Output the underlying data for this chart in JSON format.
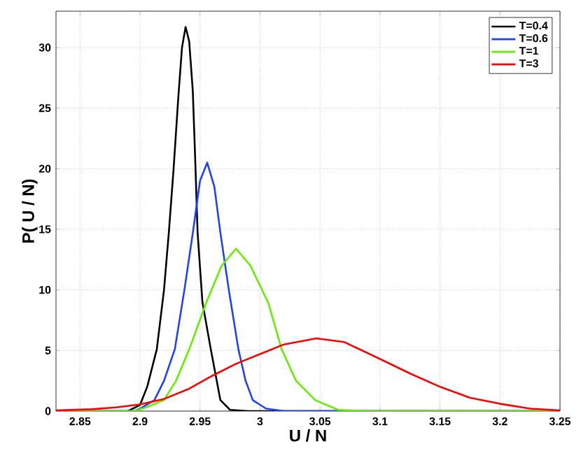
{
  "chart_data": {
    "type": "line",
    "xlabel": "U / N",
    "ylabel": "P( U / N)",
    "xlim": [
      2.83,
      3.25
    ],
    "ylim": [
      0,
      33
    ],
    "xticks": [
      2.85,
      2.9,
      2.95,
      3,
      3.05,
      3.1,
      3.15,
      3.2,
      3.25
    ],
    "yticks": [
      0,
      5,
      10,
      15,
      20,
      25,
      30
    ],
    "grid": true,
    "legend": "top right",
    "series": [
      {
        "name": "T=0.4",
        "color": "#000000",
        "x": [
          2.83,
          2.89,
          2.9,
          2.906,
          2.914,
          2.92,
          2.924,
          2.928,
          2.932,
          2.935,
          2.938,
          2.941,
          2.944,
          2.946,
          2.948,
          2.952,
          2.959,
          2.967,
          2.975,
          2.99,
          3.25
        ],
        "values": [
          0,
          0,
          0.5,
          2,
          5.1,
          10,
          14.7,
          20,
          26,
          30,
          31.7,
          30.5,
          26.4,
          20.8,
          14.7,
          9,
          5.1,
          0.9,
          0.1,
          0,
          0
        ]
      },
      {
        "name": "T=0.6",
        "color": "#2040ff",
        "x": [
          2.83,
          2.895,
          2.9,
          2.912,
          2.92,
          2.929,
          2.937,
          2.944,
          2.95,
          2.956,
          2.962,
          2.967,
          2.974,
          2.982,
          2.988,
          2.994,
          3.005,
          3.02,
          3.25
        ],
        "values": [
          0,
          0,
          0.2,
          0.9,
          2.5,
          5.1,
          10,
          14.7,
          19,
          20.5,
          18.5,
          14.7,
          10,
          5.1,
          2.5,
          0.9,
          0.2,
          0,
          0
        ]
      },
      {
        "name": "T=1",
        "color": "#66ee00",
        "x": [
          2.83,
          2.895,
          2.905,
          2.92,
          2.93,
          2.941,
          2.955,
          2.968,
          2.98,
          2.992,
          3.007,
          3.018,
          3.03,
          3.046,
          3.065,
          3.09,
          3.25
        ],
        "values": [
          0,
          0,
          0.3,
          0.9,
          2.5,
          5.1,
          8.9,
          12,
          13.4,
          12,
          8.9,
          5.1,
          2.5,
          0.9,
          0.1,
          0,
          0
        ]
      },
      {
        "name": "T=3",
        "color": "#ff0000",
        "x": [
          2.83,
          2.86,
          2.88,
          2.9,
          2.92,
          2.94,
          2.96,
          2.98,
          3.0,
          3.02,
          3.047,
          3.07,
          3.1,
          3.125,
          3.15,
          3.175,
          3.2,
          3.225,
          3.25
        ],
        "values": [
          0.05,
          0.15,
          0.3,
          0.55,
          1.0,
          1.8,
          2.9,
          3.9,
          4.7,
          5.5,
          6.0,
          5.7,
          4.3,
          3.1,
          2.0,
          1.1,
          0.6,
          0.2,
          0.05
        ]
      }
    ]
  }
}
